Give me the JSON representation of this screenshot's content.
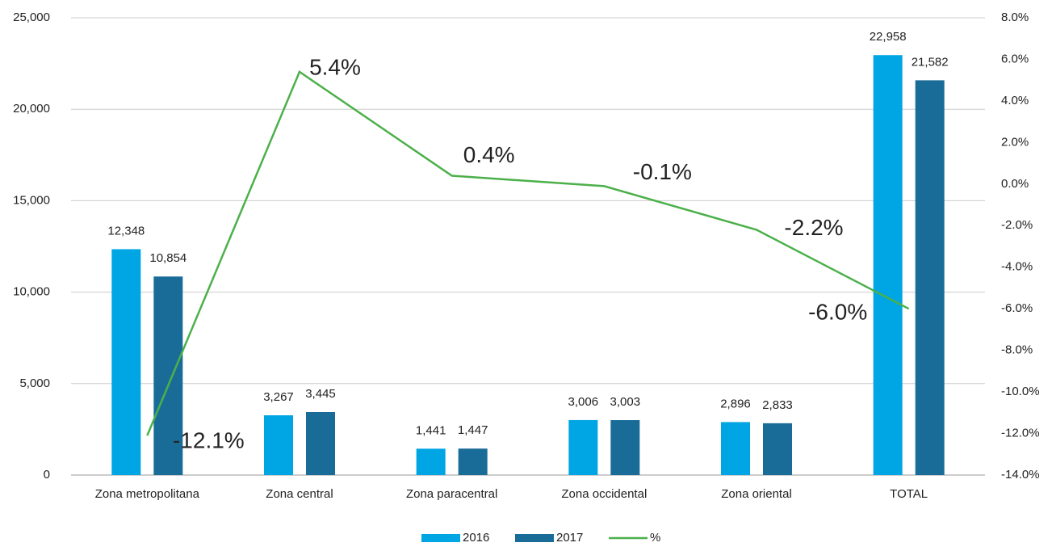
{
  "chart_data": {
    "type": "bar_line",
    "categories": [
      "Zona metropolitana",
      "Zona central",
      "Zona paracentral",
      "Zona occidental",
      "Zona oriental",
      "TOTAL"
    ],
    "series": [
      {
        "name": "2016",
        "color": "#00a5e3",
        "values": [
          12348,
          3267,
          1441,
          3006,
          2896,
          22958
        ],
        "value_labels": [
          "12,348",
          "3,267",
          "1,441",
          "3,006",
          "2,896",
          "22,958"
        ]
      },
      {
        "name": "2017",
        "color": "#1a6c98",
        "values": [
          10854,
          3445,
          1447,
          3003,
          2833,
          21582
        ],
        "value_labels": [
          "10,854",
          "3,445",
          "1,447",
          "3,003",
          "2,833",
          "21,582"
        ]
      },
      {
        "name": "%",
        "color": "#4cb04a",
        "axis": "y2",
        "type": "line",
        "values": [
          -12.1,
          5.4,
          0.4,
          -0.1,
          -2.2,
          -6.0
        ],
        "value_labels": [
          "-12.1%",
          "5.4%",
          "0.4%",
          "-0.1%",
          "-2.2%",
          "-6.0%"
        ]
      }
    ],
    "ylim": [
      0,
      25000
    ],
    "yticks": [
      0,
      {
        "value": 5000,
        "label": "5,000"
      },
      {
        "value": 10000,
        "label": "10,000"
      },
      {
        "value": 15000,
        "label": "15,000"
      },
      {
        "value": 20000,
        "label": "20,000"
      },
      {
        "value": 25000,
        "label": "25,000"
      }
    ],
    "y2lim": [
      -14,
      8
    ],
    "y2ticks": [
      {
        "value": -14,
        "label": "-14.0%"
      },
      {
        "value": -12,
        "label": "-12.0%"
      },
      {
        "value": -10,
        "label": "-10.0%"
      },
      {
        "value": -8,
        "label": "-8.0%"
      },
      {
        "value": -6,
        "label": "-6.0%"
      },
      {
        "value": -4,
        "label": "-4.0%"
      },
      {
        "value": -2,
        "label": "-2.0%"
      },
      {
        "value": 0,
        "label": "0.0%"
      },
      {
        "value": 2,
        "label": "2.0%"
      },
      {
        "value": 4,
        "label": "4.0%"
      },
      {
        "value": 6,
        "label": "6.0%"
      },
      {
        "value": 8,
        "label": "8.0%"
      }
    ],
    "grid": true,
    "legend": "bottom"
  }
}
